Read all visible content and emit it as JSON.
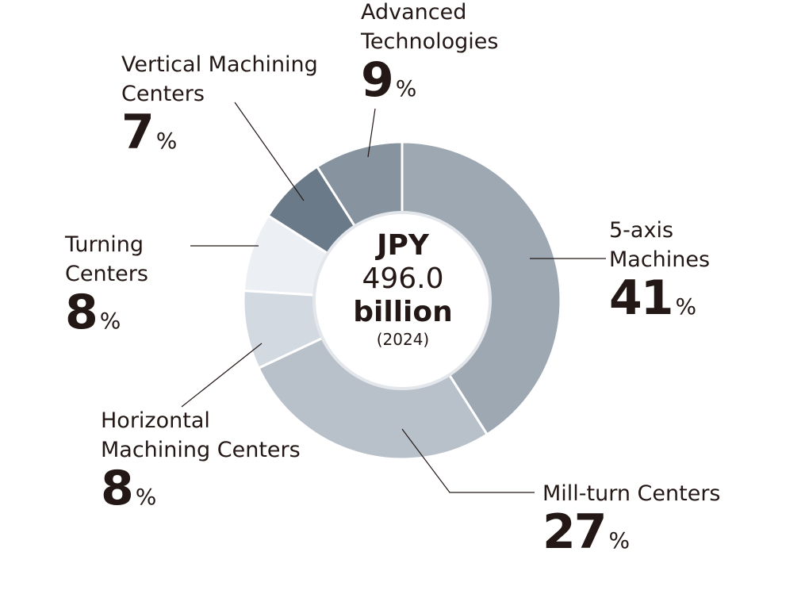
{
  "chart_data": {
    "type": "pie",
    "total": {
      "line1": "JPY",
      "line2": "496.0",
      "line3": "billion",
      "year": "(2024)"
    },
    "unit_symbol": "%",
    "slices": [
      {
        "label_lines": [
          "5-axis",
          "Machines"
        ],
        "value": 41,
        "color": "#9ea8b2"
      },
      {
        "label_lines": [
          "Mill-turn Centers"
        ],
        "value": 27,
        "color": "#b8c0c9"
      },
      {
        "label_lines": [
          "Horizontal",
          "Machining Centers"
        ],
        "value": 8,
        "color": "#d3d9e0"
      },
      {
        "label_lines": [
          "Turning",
          "Centers"
        ],
        "value": 8,
        "color": "#eceff3"
      },
      {
        "label_lines": [
          "Vertical Machining",
          "Centers"
        ],
        "value": 7,
        "color": "#6b7a89"
      },
      {
        "label_lines": [
          "Advanced",
          "Technologies"
        ],
        "value": 9,
        "color": "#87939f"
      }
    ]
  }
}
